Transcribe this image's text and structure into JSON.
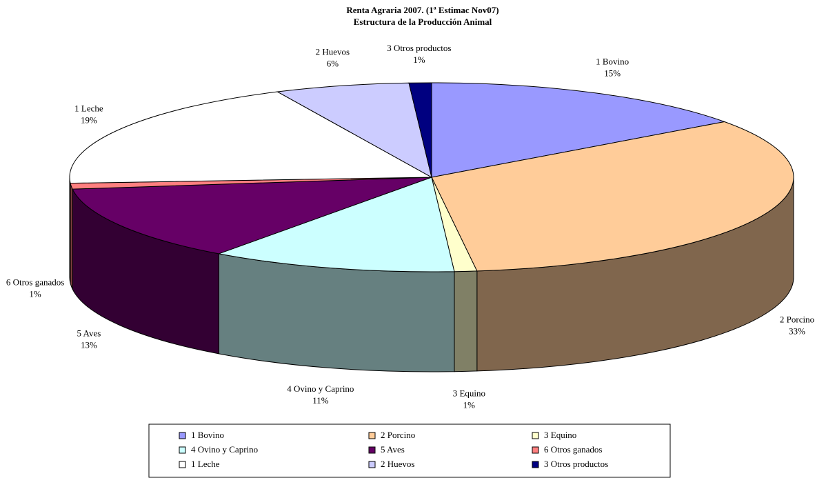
{
  "chart_data": {
    "type": "pie3d",
    "title": "Renta Agraria 2007. (1ª Estimac Nov07)",
    "subtitle": "Estructura de la Producción Animal",
    "categories": [
      "1  Bovino",
      "2  Porcino",
      "3  Equino",
      "4  Ovino y Caprino",
      "5  Aves",
      "6  Otros ganados",
      "1  Leche",
      "2  Huevos",
      "3  Otros productos"
    ],
    "values": [
      15,
      33,
      1,
      11,
      13,
      1,
      19,
      6,
      1
    ],
    "value_labels": [
      "15%",
      "33%",
      "1%",
      "11%",
      "13%",
      "1%",
      "19%",
      "6%",
      "1%"
    ],
    "colors": [
      "#9999ff",
      "#ffcc99",
      "#ffffcc",
      "#ccffff",
      "#660066",
      "#ff8080",
      "#ffffff",
      "#ccccff",
      "#000080"
    ],
    "legend": "bottom"
  }
}
